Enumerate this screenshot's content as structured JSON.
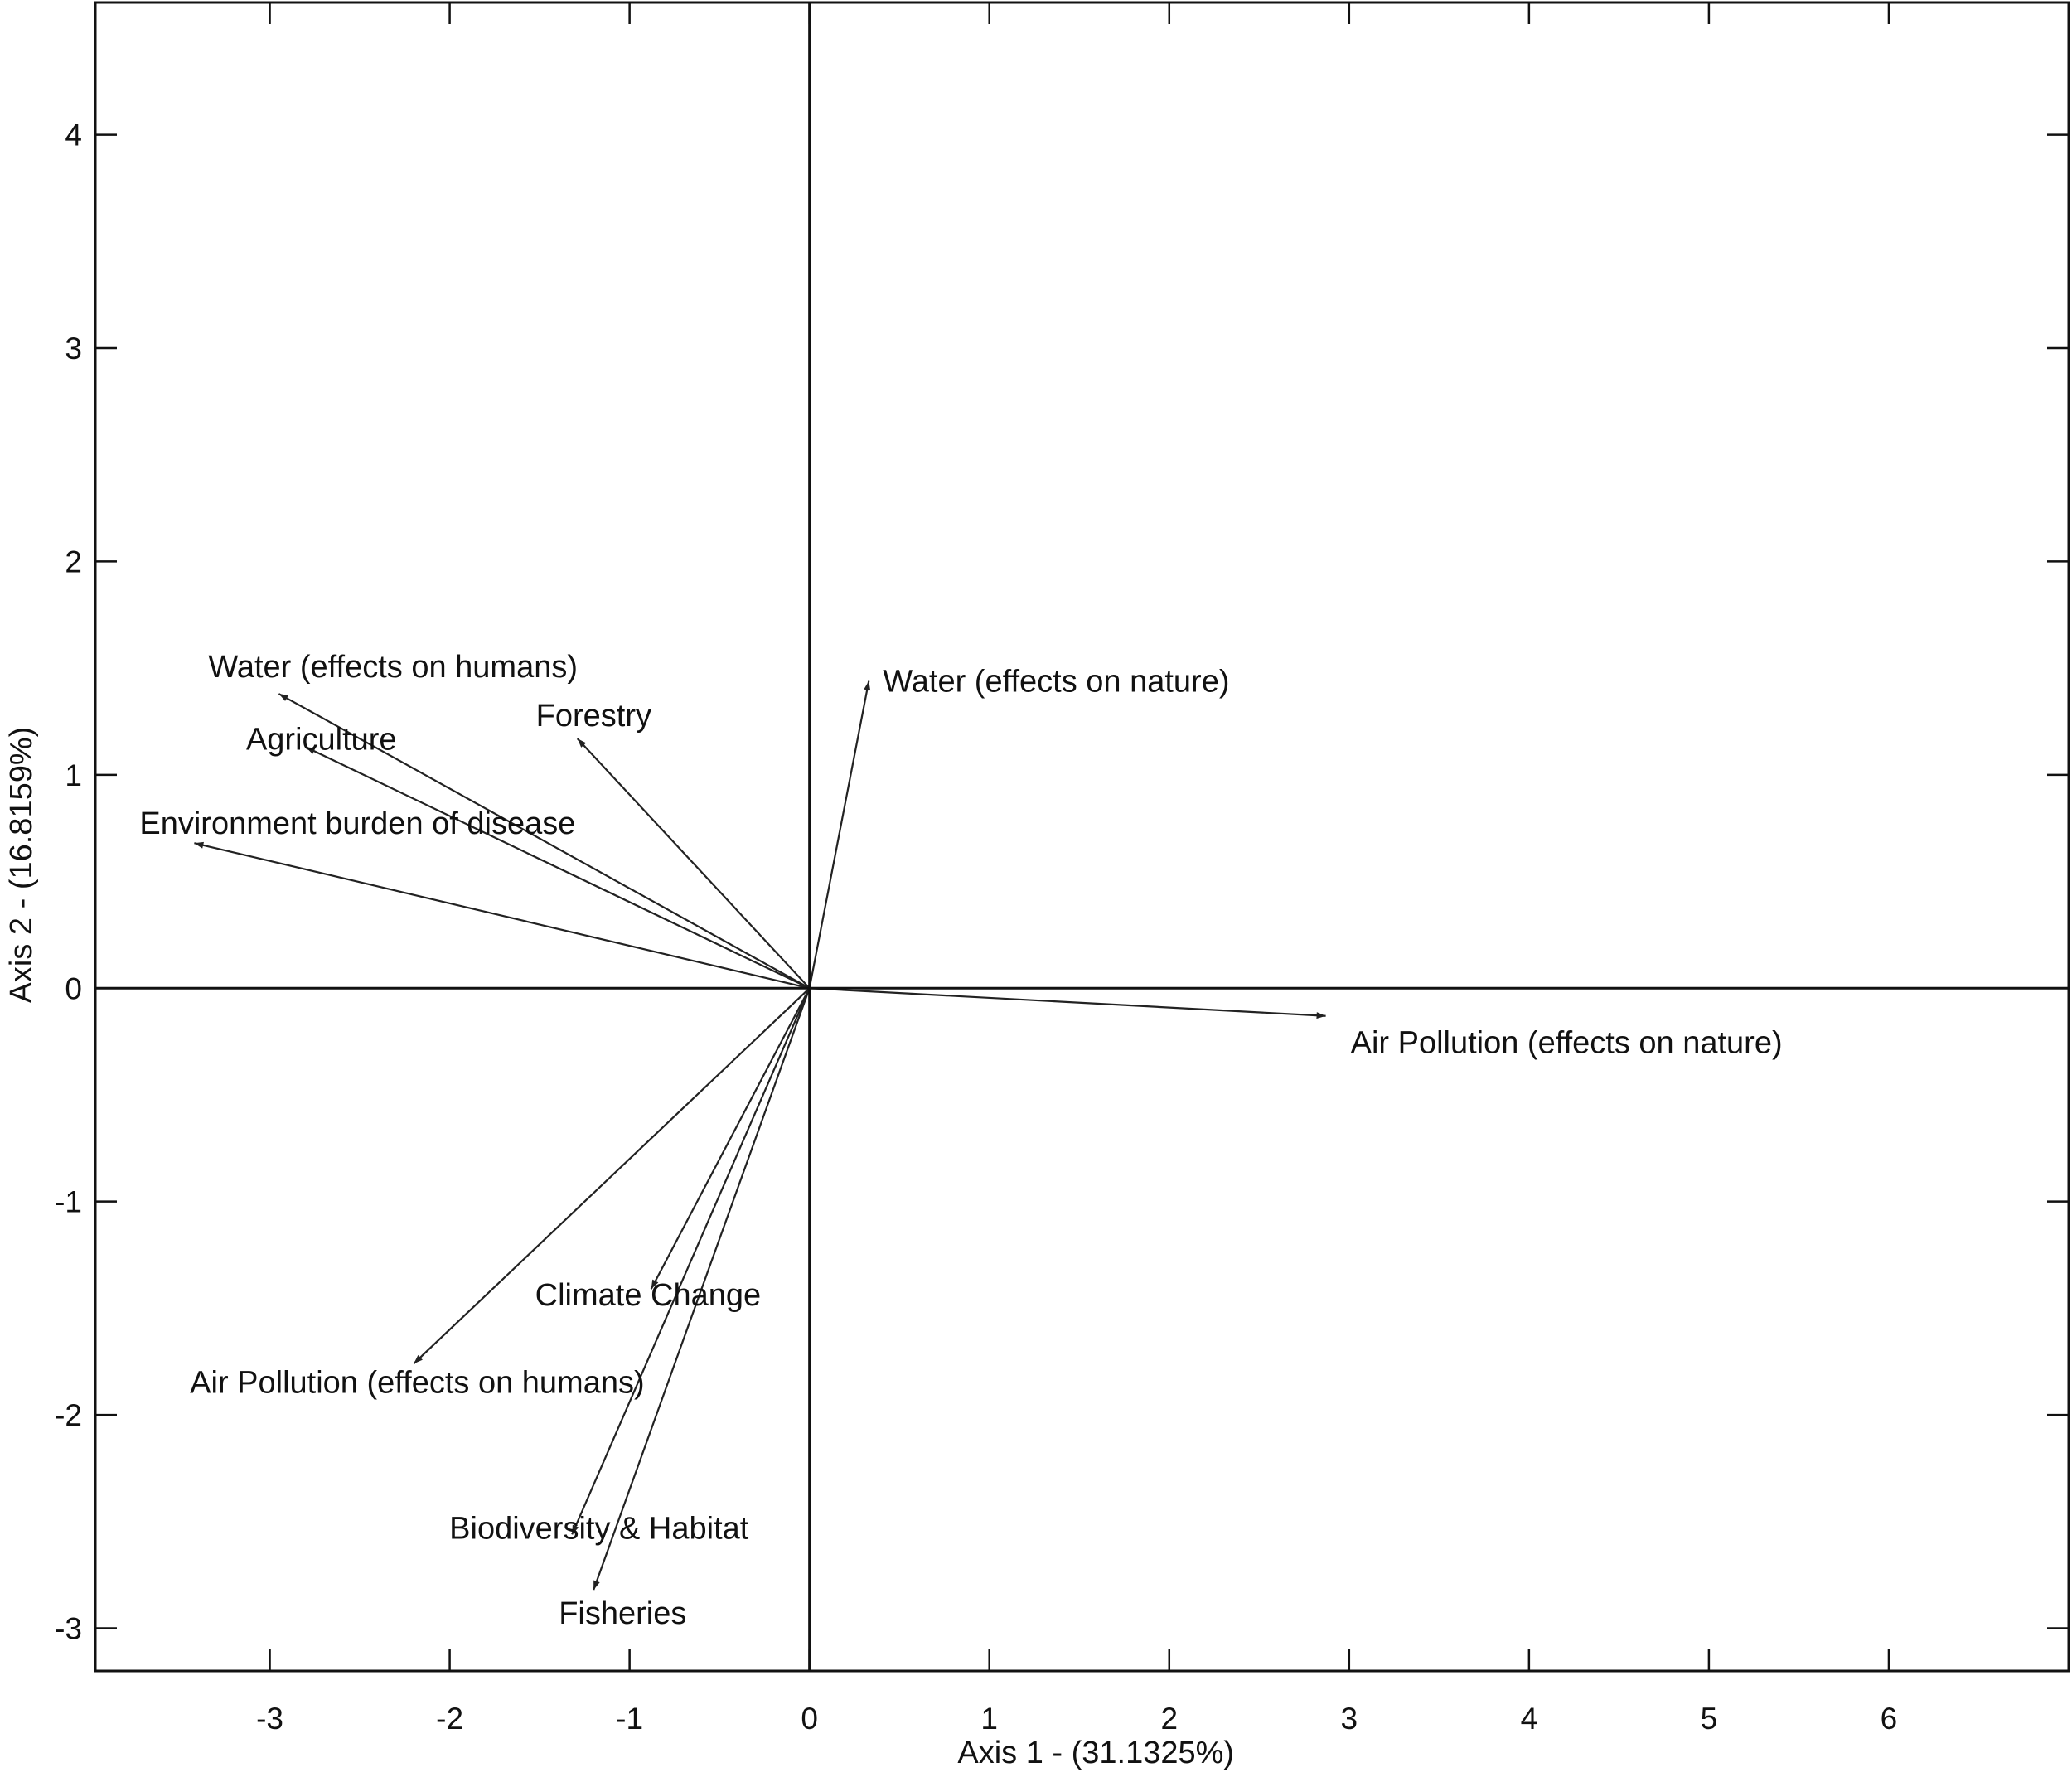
{
  "chart_data": {
    "type": "scatter",
    "subtype": "biplot-vectors",
    "title": "",
    "xlabel": "Axis 1 - (31.1325%)",
    "ylabel": "Axis 2 - (16.8159%)",
    "xlim": [
      -3.97,
      7.0
    ],
    "ylim": [
      -3.2,
      4.62
    ],
    "xticks": [
      -3,
      -2,
      -1,
      0,
      1,
      2,
      3,
      4,
      5,
      6
    ],
    "yticks": [
      -3,
      -2,
      -1,
      0,
      1,
      2,
      3,
      4
    ],
    "grid": false,
    "zero_lines": true,
    "colors": {
      "line": "#222222",
      "text": "#111111",
      "background": "#ffffff"
    },
    "series": [
      {
        "label": "Water (effects on humans)",
        "x": -2.95,
        "y": 1.38
      },
      {
        "label": "Forestry",
        "x": -1.29,
        "y": 1.17
      },
      {
        "label": "Agriculture",
        "x": -2.8,
        "y": 1.13
      },
      {
        "label": "Environment burden of disease",
        "x": -3.42,
        "y": 0.68
      },
      {
        "label": "Water (effects on nature)",
        "x": 0.33,
        "y": 1.44
      },
      {
        "label": "Air Pollution (effects on nature)",
        "x": 2.87,
        "y": -0.13
      },
      {
        "label": "Climate Change",
        "x": -0.88,
        "y": -1.41
      },
      {
        "label": "Air Pollution (effects on humans)",
        "x": -2.2,
        "y": -1.76
      },
      {
        "label": "Biodiversity & Habitat",
        "x": -1.32,
        "y": -2.56
      },
      {
        "label": "Fisheries",
        "x": -1.2,
        "y": -2.82
      }
    ]
  }
}
